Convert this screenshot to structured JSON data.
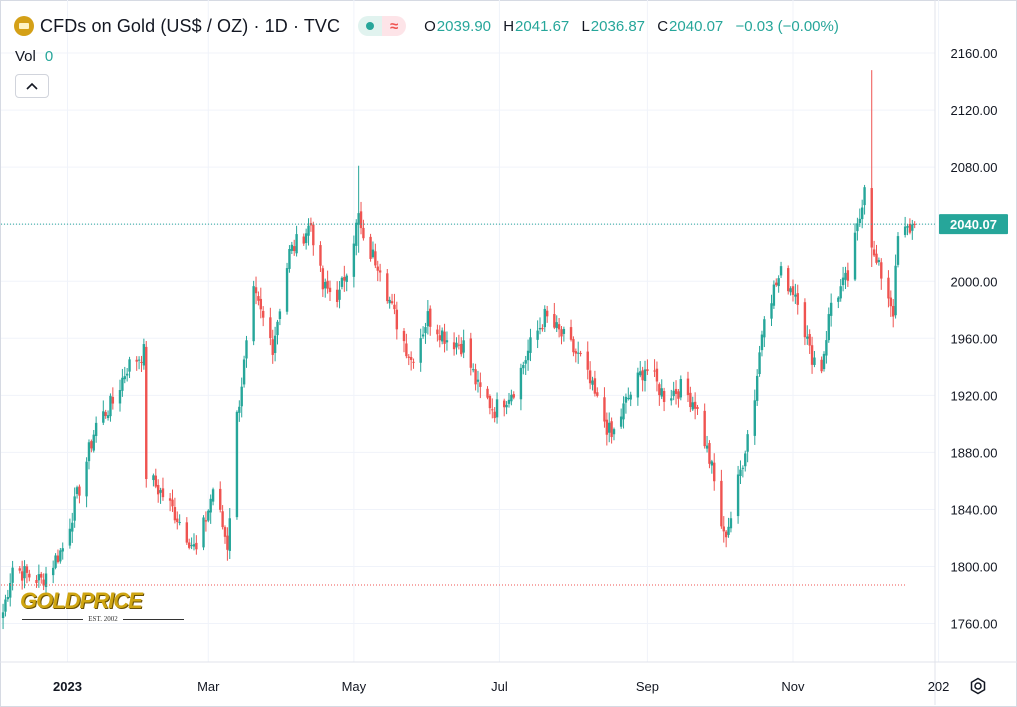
{
  "legend": {
    "title": "CFDs on Gold (US$ / OZ) · 1D · TVC",
    "symbol_icon": "gold-bars-icon",
    "open_label": "O",
    "open": "2039.90",
    "high_label": "H",
    "high": "2041.67",
    "low_label": "L",
    "low": "2036.87",
    "close_label": "C",
    "close": "2040.07",
    "change": "−0.03 (−0.00%)",
    "pill_icons": [
      "dot-icon",
      "wave-icon"
    ]
  },
  "volume": {
    "label": "Vol",
    "value": "0"
  },
  "collapse_icon": "chevron-up-icon",
  "settings_icon": "gear-icon",
  "watermark": {
    "name": "GOLDPRICE",
    "est": "EST. 2002"
  },
  "colors": {
    "up": "#26a69a",
    "down": "#ef5350",
    "grid": "#f0f3fa",
    "text": "#131722",
    "price_line": "#26a69a",
    "reference_line": "#ef5350"
  },
  "chart_data": {
    "type": "candlestick",
    "title": "CFDs on Gold (US$ / OZ) · 1D · TVC",
    "xlabel": "",
    "ylabel": "",
    "ylim": [
      1735,
      2170
    ],
    "y_ticks": [
      "2160.00",
      "2120.00",
      "2080.00",
      "2040.00",
      "2000.00",
      "1960.00",
      "1920.00",
      "1880.00",
      "1840.00",
      "1800.00",
      "1760.00"
    ],
    "x_ticks": [
      "2023",
      "Mar",
      "May",
      "Jul",
      "Sep",
      "Nov",
      "202"
    ],
    "grid": true,
    "last_price_label": "2040.07",
    "last_price": 2040.07,
    "reference_level": 1787,
    "close_path": [
      [
        "2022-12-05",
        1768
      ],
      [
        "2022-12-09",
        1800
      ],
      [
        "2022-12-14",
        1795
      ],
      [
        "2022-12-21",
        1790
      ],
      [
        "2022-12-30",
        1813
      ],
      [
        "2023-01-06",
        1855
      ],
      [
        "2023-01-13",
        1900
      ],
      [
        "2023-01-20",
        1915
      ],
      [
        "2023-01-26",
        1940
      ],
      [
        "2023-02-02",
        1950
      ],
      [
        "2023-02-03",
        1865
      ],
      [
        "2023-02-10",
        1850
      ],
      [
        "2023-02-16",
        1835
      ],
      [
        "2023-02-24",
        1810
      ],
      [
        "2023-03-01",
        1840
      ],
      [
        "2023-03-03",
        1855
      ],
      [
        "2023-03-09",
        1815
      ],
      [
        "2023-03-13",
        1905
      ],
      [
        "2023-03-20",
        1990
      ],
      [
        "2023-03-28",
        1955
      ],
      [
        "2023-04-04",
        2020
      ],
      [
        "2023-04-13",
        2040
      ],
      [
        "2023-04-18",
        1995
      ],
      [
        "2023-04-25",
        1990
      ],
      [
        "2023-05-03",
        2045
      ],
      [
        "2023-05-05",
        2025
      ],
      [
        "2023-05-12",
        2012
      ],
      [
        "2023-05-17",
        1980
      ],
      [
        "2023-05-25",
        1945
      ],
      [
        "2023-06-01",
        1975
      ],
      [
        "2023-06-09",
        1960
      ],
      [
        "2023-06-16",
        1955
      ],
      [
        "2023-06-22",
        1925
      ],
      [
        "2023-06-29",
        1910
      ],
      [
        "2023-07-07",
        1925
      ],
      [
        "2023-07-14",
        1955
      ],
      [
        "2023-07-20",
        1975
      ],
      [
        "2023-07-28",
        1960
      ],
      [
        "2023-08-04",
        1945
      ],
      [
        "2023-08-11",
        1915
      ],
      [
        "2023-08-17",
        1890
      ],
      [
        "2023-08-23",
        1915
      ],
      [
        "2023-08-31",
        1940
      ],
      [
        "2023-09-08",
        1920
      ],
      [
        "2023-09-15",
        1925
      ],
      [
        "2023-09-21",
        1915
      ],
      [
        "2023-09-28",
        1868
      ],
      [
        "2023-10-03",
        1820
      ],
      [
        "2023-10-06",
        1835
      ],
      [
        "2023-10-11",
        1875
      ],
      [
        "2023-10-16",
        1920
      ],
      [
        "2023-10-20",
        1980
      ],
      [
        "2023-10-27",
        2005
      ],
      [
        "2023-11-03",
        1990
      ],
      [
        "2023-11-08",
        1950
      ],
      [
        "2023-11-13",
        1940
      ],
      [
        "2023-11-17",
        1985
      ],
      [
        "2023-11-24",
        2002
      ],
      [
        "2023-11-29",
        2045
      ],
      [
        "2023-12-01",
        2070
      ],
      [
        "2023-12-05",
        2015
      ],
      [
        "2023-12-08",
        2005
      ],
      [
        "2023-12-13",
        1980
      ],
      [
        "2023-12-15",
        2030
      ],
      [
        "2023-12-22",
        2040.07
      ]
    ],
    "notable_wicks": [
      {
        "date": "2023-05-03",
        "high": 2081,
        "low": 2020
      },
      {
        "date": "2023-12-04",
        "high": 2148,
        "low": 2010
      }
    ]
  }
}
